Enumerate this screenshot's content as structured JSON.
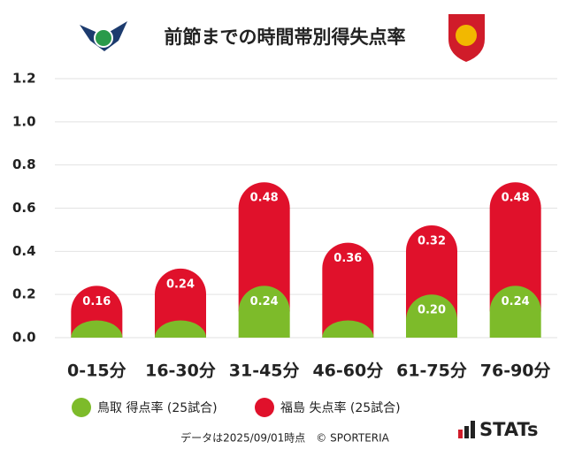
{
  "chart_data": {
    "type": "stacked-bar",
    "title": "前節までの時間帯別得失点率",
    "categories": [
      "0-15分",
      "16-30分",
      "31-45分",
      "46-60分",
      "61-75分",
      "76-90分"
    ],
    "series": [
      {
        "name": "鳥取 得点率 (25試合)",
        "color": "#7dbb2a",
        "values": [
          0.08,
          0.08,
          0.24,
          0.08,
          0.2,
          0.24
        ],
        "value_labels": [
          null,
          null,
          "0.24",
          null,
          "0.20",
          "0.24"
        ]
      },
      {
        "name": "福島 失点率 (25試合)",
        "color": "#e0112b",
        "values": [
          0.16,
          0.24,
          0.48,
          0.36,
          0.32,
          0.48
        ],
        "value_labels": [
          "0.16",
          "0.24",
          "0.48",
          "0.36",
          "0.32",
          "0.48"
        ]
      }
    ],
    "ylim": [
      0,
      1.2
    ],
    "yticks": [
      {
        "value": 0,
        "label": "0.0"
      },
      0.2,
      0.4,
      0.6,
      0.8,
      {
        "value": 1,
        "label": "1.0"
      },
      1.2
    ],
    "grid": true,
    "legend": "bottom"
  },
  "footer": {
    "note": "データは2025/09/01時点　© SPORTERIA",
    "brand": "STATs"
  }
}
